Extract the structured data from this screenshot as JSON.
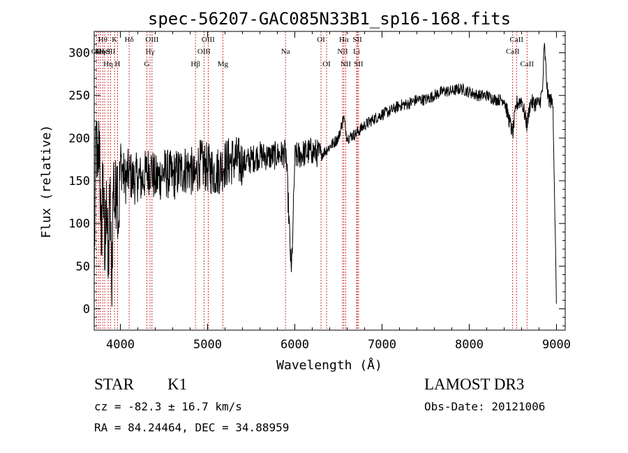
{
  "chart_data": {
    "type": "line",
    "title": "spec-56207-GAC085N33B1_sp16-168.fits",
    "xlabel": "Wavelength (Å)",
    "ylabel": "Flux (relative)",
    "xlim": [
      3700,
      9100
    ],
    "ylim": [
      -25,
      325
    ],
    "xticks": [
      4000,
      5000,
      6000,
      7000,
      8000,
      9000
    ],
    "yticks": [
      0,
      50,
      100,
      150,
      200,
      250,
      300
    ],
    "series": [
      {
        "name": "flux",
        "x": [
          3700,
          3720,
          3740,
          3760,
          3780,
          3800,
          3820,
          3840,
          3860,
          3880,
          3900,
          3920,
          3940,
          3960,
          3980,
          4000,
          4050,
          4100,
          4150,
          4200,
          4250,
          4300,
          4350,
          4400,
          4500,
          4600,
          4700,
          4800,
          4850,
          4900,
          5000,
          5100,
          5200,
          5300,
          5400,
          5500,
          5600,
          5700,
          5800,
          5900,
          5960,
          5980,
          6000,
          6100,
          6200,
          6300,
          6400,
          6500,
          6560,
          6600,
          6700,
          6800,
          6900,
          7000,
          7100,
          7200,
          7300,
          7400,
          7500,
          7600,
          7700,
          7800,
          7900,
          8000,
          8100,
          8200,
          8300,
          8400,
          8498,
          8540,
          8600,
          8662,
          8700,
          8800,
          8840,
          8860,
          8900,
          8960,
          9000
        ],
        "values": [
          30,
          215,
          150,
          210,
          60,
          180,
          40,
          150,
          30,
          130,
          25,
          160,
          110,
          170,
          100,
          175,
          150,
          160,
          150,
          155,
          150,
          160,
          165,
          150,
          160,
          155,
          162,
          165,
          150,
          170,
          165,
          160,
          170,
          175,
          170,
          175,
          180,
          178,
          180,
          182,
          40,
          100,
          178,
          182,
          185,
          180,
          190,
          200,
          225,
          200,
          205,
          215,
          222,
          228,
          232,
          238,
          240,
          245,
          245,
          250,
          255,
          255,
          258,
          254,
          250,
          250,
          245,
          245,
          205,
          240,
          245,
          215,
          242,
          240,
          255,
          310,
          248,
          240,
          0
        ]
      }
    ],
    "lines": [
      {
        "wave": 3727,
        "row": 1,
        "label": "OII"
      },
      {
        "wave": 3750,
        "row": 1,
        "label": "H"
      },
      {
        "wave": 3771,
        "row": 1,
        "label": "Hη"
      },
      {
        "wave": 3798,
        "row": 0,
        "label": "Hθ"
      },
      {
        "wave": 3820,
        "row": 1,
        "label": "HeI"
      },
      {
        "wave": 3860,
        "row": 2,
        "label": "Hη"
      },
      {
        "wave": 3889,
        "row": 1,
        "label": "SII"
      },
      {
        "wave": 3933,
        "row": 0,
        "label": "K"
      },
      {
        "wave": 3968,
        "row": 2,
        "label": "H"
      },
      {
        "wave": 4101,
        "row": 0,
        "label": "Hδ"
      },
      {
        "wave": 4340,
        "row": 1,
        "label": "Hγ"
      },
      {
        "wave": 4304,
        "row": 2,
        "label": "G"
      },
      {
        "wave": 4363,
        "row": 0,
        "label": "OIII"
      },
      {
        "wave": 4861,
        "row": 2,
        "label": "Hβ"
      },
      {
        "wave": 4959,
        "row": 1,
        "label": "OIII"
      },
      {
        "wave": 5007,
        "row": 0,
        "label": "OIII"
      },
      {
        "wave": 5175,
        "row": 2,
        "label": "Mg"
      },
      {
        "wave": 5893,
        "row": 1,
        "label": "Na"
      },
      {
        "wave": 6300,
        "row": 0,
        "label": "OI"
      },
      {
        "wave": 6364,
        "row": 2,
        "label": "OI"
      },
      {
        "wave": 6548,
        "row": 1,
        "label": "NII"
      },
      {
        "wave": 6563,
        "row": 0,
        "label": "Hα"
      },
      {
        "wave": 6583,
        "row": 2,
        "label": "NII"
      },
      {
        "wave": 6708,
        "row": 1,
        "label": "Li"
      },
      {
        "wave": 6717,
        "row": 0,
        "label": "SII"
      },
      {
        "wave": 6731,
        "row": 2,
        "label": "SII"
      },
      {
        "wave": 8498,
        "row": 1,
        "label": "CaII"
      },
      {
        "wave": 8542,
        "row": 0,
        "label": "CaII"
      },
      {
        "wave": 8662,
        "row": 2,
        "label": "CaII"
      }
    ]
  },
  "info": {
    "class": "STAR",
    "subclass": "K1",
    "survey": "LAMOST DR3",
    "cz": "cz = -82.3 ± 16.7 km/s",
    "obs_date": "Obs-Date: 20121006",
    "radec": "RA =  84.24464, DEC =  34.88959"
  }
}
